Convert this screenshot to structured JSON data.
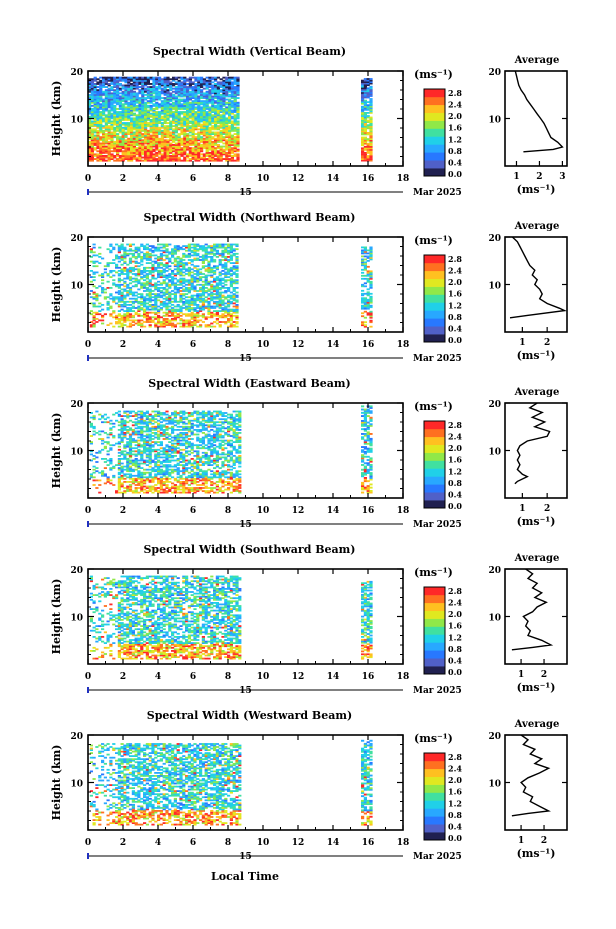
{
  "figure": {
    "xlabel": "Local Time",
    "date_label": "Mar 2025",
    "day_marker": "15",
    "height_label": "Height (km)",
    "unit_label": "(ms⁻¹)",
    "average_title": "Average",
    "average_unit": "(ms⁻¹)",
    "colorbar_ticks": [
      "0.0",
      "0.4",
      "0.8",
      "1.2",
      "1.6",
      "2.0",
      "2.4",
      "2.8"
    ],
    "colorbar_colors": [
      "#202050",
      "#5060c8",
      "#2878ff",
      "#28a8ff",
      "#20d0e8",
      "#40e0a0",
      "#90e848",
      "#e0e820",
      "#ffc020",
      "#ff7020",
      "#ff2828"
    ]
  },
  "chart_data": [
    {
      "type": "heatmap",
      "title": "Spectral Width (Vertical Beam)",
      "xlabel": "Local Time",
      "ylabel": "Height (km)",
      "xlim": [
        0,
        18
      ],
      "ylim": [
        0,
        20
      ],
      "x_ticks": [
        "0",
        "2",
        "4",
        "6",
        "8",
        "10",
        "12",
        "14",
        "16",
        "18"
      ],
      "y_ticks": [
        "10",
        "20"
      ],
      "data_blocks": [
        {
          "t_start": 0.0,
          "t_end": 8.6,
          "h_min": 1.0,
          "h_max": 18.8
        },
        {
          "t_start": 15.6,
          "t_end": 16.1,
          "h_min": 1.0,
          "h_max": 18.5
        }
      ],
      "average_profile": {
        "xlim": [
          0.5,
          3.2
        ],
        "x_ticks": [
          "1",
          "2",
          "3"
        ],
        "y_ticks": [
          "10",
          "20"
        ],
        "points": [
          [
            0.95,
            20
          ],
          [
            1.0,
            19
          ],
          [
            1.05,
            18
          ],
          [
            1.1,
            17
          ],
          [
            1.2,
            16
          ],
          [
            1.35,
            15
          ],
          [
            1.45,
            14
          ],
          [
            1.6,
            13
          ],
          [
            1.75,
            12
          ],
          [
            1.9,
            11
          ],
          [
            2.05,
            10
          ],
          [
            2.2,
            9
          ],
          [
            2.3,
            8
          ],
          [
            2.4,
            7
          ],
          [
            2.5,
            6
          ],
          [
            2.8,
            5
          ],
          [
            3.0,
            4
          ],
          [
            2.6,
            3.5
          ],
          [
            1.3,
            3
          ]
        ]
      }
    },
    {
      "type": "heatmap",
      "title": "Spectral Width (Northward Beam)",
      "xlabel": "Local Time",
      "ylabel": "Height (km)",
      "xlim": [
        0,
        18
      ],
      "ylim": [
        0,
        20
      ],
      "x_ticks": [
        "0",
        "2",
        "4",
        "6",
        "8",
        "10",
        "12",
        "14",
        "16",
        "18"
      ],
      "y_ticks": [
        "10",
        "20"
      ],
      "data_blocks": [
        {
          "t_start": 0.1,
          "t_end": 8.5,
          "h_min": 1.0,
          "h_max": 18.6
        },
        {
          "t_start": 15.6,
          "t_end": 16.1,
          "h_min": 1.0,
          "h_max": 18.0
        }
      ],
      "average_profile": {
        "xlim": [
          0.3,
          2.8
        ],
        "x_ticks": [
          "1",
          "2"
        ],
        "y_ticks": [
          "10",
          "20"
        ],
        "points": [
          [
            0.6,
            20
          ],
          [
            0.8,
            19
          ],
          [
            0.9,
            18
          ],
          [
            1.0,
            17
          ],
          [
            1.1,
            16
          ],
          [
            1.2,
            15
          ],
          [
            1.3,
            14
          ],
          [
            1.5,
            13
          ],
          [
            1.4,
            12
          ],
          [
            1.6,
            11
          ],
          [
            1.5,
            10
          ],
          [
            1.7,
            9
          ],
          [
            1.8,
            8
          ],
          [
            1.7,
            7
          ],
          [
            2.0,
            6
          ],
          [
            2.5,
            5
          ],
          [
            2.7,
            4.5
          ],
          [
            1.2,
            3.5
          ],
          [
            0.5,
            3
          ]
        ]
      }
    },
    {
      "type": "heatmap",
      "title": "Spectral Width (Eastward Beam)",
      "xlabel": "Local Time",
      "ylabel": "Height (km)",
      "xlim": [
        0,
        18
      ],
      "ylim": [
        0,
        20
      ],
      "x_ticks": [
        "0",
        "2",
        "4",
        "6",
        "8",
        "10",
        "12",
        "14",
        "16",
        "18"
      ],
      "y_ticks": [
        "10",
        "20"
      ],
      "data_blocks": [
        {
          "t_start": 0.1,
          "t_end": 8.6,
          "h_min": 1.0,
          "h_max": 18.4
        },
        {
          "t_start": 15.6,
          "t_end": 16.1,
          "h_min": 1.0,
          "h_max": 19.5
        }
      ],
      "average_profile": {
        "xlim": [
          0.3,
          2.8
        ],
        "x_ticks": [
          "1",
          "2"
        ],
        "y_ticks": [
          "10",
          "20"
        ],
        "points": [
          [
            1.6,
            20
          ],
          [
            1.3,
            19
          ],
          [
            1.8,
            18
          ],
          [
            1.4,
            17
          ],
          [
            1.9,
            16
          ],
          [
            1.5,
            15
          ],
          [
            2.1,
            14
          ],
          [
            2.0,
            13
          ],
          [
            1.2,
            12
          ],
          [
            0.9,
            11
          ],
          [
            0.8,
            10
          ],
          [
            0.9,
            9
          ],
          [
            0.8,
            8
          ],
          [
            0.9,
            7
          ],
          [
            0.8,
            6
          ],
          [
            1.0,
            5
          ],
          [
            1.2,
            4.5
          ],
          [
            0.8,
            3.5
          ],
          [
            0.7,
            3
          ]
        ]
      }
    },
    {
      "type": "heatmap",
      "title": "Spectral Width (Southward Beam)",
      "xlabel": "Local Time",
      "ylabel": "Height (km)",
      "xlim": [
        0,
        18
      ],
      "ylim": [
        0,
        20
      ],
      "x_ticks": [
        "0",
        "2",
        "4",
        "6",
        "8",
        "10",
        "12",
        "14",
        "16",
        "18"
      ],
      "y_ticks": [
        "10",
        "20"
      ],
      "data_blocks": [
        {
          "t_start": 0.1,
          "t_end": 8.6,
          "h_min": 1.0,
          "h_max": 18.6
        },
        {
          "t_start": 15.6,
          "t_end": 16.1,
          "h_min": 1.0,
          "h_max": 17.5
        }
      ],
      "average_profile": {
        "xlim": [
          0.3,
          3.0
        ],
        "x_ticks": [
          "1",
          "2"
        ],
        "y_ticks": [
          "10",
          "20"
        ],
        "points": [
          [
            1.2,
            20
          ],
          [
            1.5,
            19
          ],
          [
            1.3,
            18
          ],
          [
            1.7,
            17
          ],
          [
            1.5,
            16
          ],
          [
            1.9,
            15
          ],
          [
            1.6,
            14
          ],
          [
            2.1,
            13
          ],
          [
            1.7,
            12
          ],
          [
            1.5,
            11
          ],
          [
            1.1,
            10
          ],
          [
            1.3,
            9
          ],
          [
            1.2,
            8
          ],
          [
            1.4,
            7
          ],
          [
            1.3,
            6
          ],
          [
            1.9,
            5
          ],
          [
            2.3,
            4
          ],
          [
            1.5,
            3.5
          ],
          [
            0.6,
            3
          ]
        ]
      }
    },
    {
      "type": "heatmap",
      "title": "Spectral Width (Westward Beam)",
      "xlabel": "Local Time",
      "ylabel": "Height (km)",
      "xlim": [
        0,
        18
      ],
      "ylim": [
        0,
        20
      ],
      "x_ticks": [
        "0",
        "2",
        "4",
        "6",
        "8",
        "10",
        "12",
        "14",
        "16",
        "18"
      ],
      "y_ticks": [
        "10",
        "20"
      ],
      "data_blocks": [
        {
          "t_start": 0.1,
          "t_end": 8.6,
          "h_min": 1.0,
          "h_max": 18.3
        },
        {
          "t_start": 15.6,
          "t_end": 16.1,
          "h_min": 1.0,
          "h_max": 19.0
        }
      ],
      "average_profile": {
        "xlim": [
          0.3,
          3.0
        ],
        "x_ticks": [
          "1",
          "2"
        ],
        "y_ticks": [
          "10",
          "20"
        ],
        "points": [
          [
            1.0,
            20
          ],
          [
            1.3,
            19
          ],
          [
            1.1,
            18
          ],
          [
            1.6,
            17
          ],
          [
            1.4,
            16
          ],
          [
            1.9,
            15
          ],
          [
            1.6,
            14
          ],
          [
            2.2,
            13
          ],
          [
            1.8,
            12
          ],
          [
            1.3,
            11
          ],
          [
            1.0,
            10
          ],
          [
            1.2,
            9
          ],
          [
            1.1,
            8
          ],
          [
            1.5,
            7
          ],
          [
            1.4,
            6
          ],
          [
            1.8,
            5
          ],
          [
            2.2,
            4
          ],
          [
            1.3,
            3.5
          ],
          [
            0.6,
            3
          ]
        ]
      }
    }
  ]
}
